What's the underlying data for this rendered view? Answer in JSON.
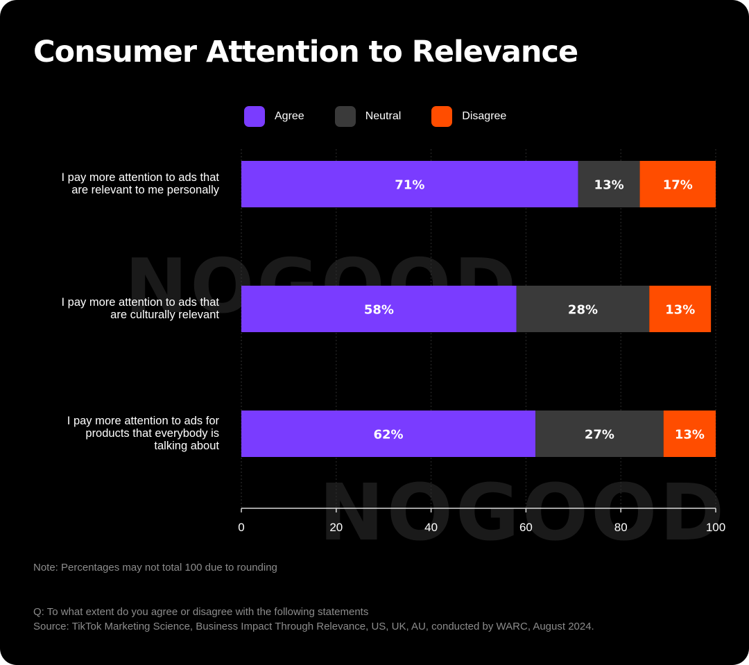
{
  "title": "Consumer Attention to Relevance",
  "watermark": "NOGOOD",
  "colors": {
    "background": "#000000",
    "agree": "#7a3cff",
    "neutral": "#3a3a3a",
    "disagree": "#ff4d00",
    "text": "#ffffff",
    "muted": "#8c8c8c"
  },
  "legend": [
    {
      "label": "Agree",
      "color": "#7a3cff"
    },
    {
      "label": "Neutral",
      "color": "#3a3a3a"
    },
    {
      "label": "Disagree",
      "color": "#ff4d00"
    }
  ],
  "chart_data": {
    "type": "bar",
    "orientation": "horizontal",
    "stacked": true,
    "title": "Consumer Attention to Relevance",
    "categories": [
      [
        "I pay more attention to ads that",
        "are relevant to me personally"
      ],
      [
        "I pay more attention to ads that",
        "are culturally relevant"
      ],
      [
        "I pay more attention to ads for",
        "products that everybody is",
        "talking about"
      ]
    ],
    "series": [
      {
        "name": "Agree",
        "color": "#7a3cff",
        "values": [
          71,
          58,
          62
        ],
        "labels": [
          "71%",
          "58%",
          "62%"
        ]
      },
      {
        "name": "Neutral",
        "color": "#3a3a3a",
        "values": [
          13,
          28,
          27
        ],
        "labels": [
          "13%",
          "28%",
          "27%"
        ]
      },
      {
        "name": "Disagree",
        "color": "#ff4d00",
        "values": [
          17,
          13,
          13
        ],
        "labels": [
          "17%",
          "13%",
          "13%"
        ]
      }
    ],
    "xlim": [
      0,
      100
    ],
    "xticks": [
      0,
      20,
      40,
      60,
      80,
      100
    ],
    "grid": true,
    "legend_position": "top"
  },
  "note": "Note: Percentages may not total 100 due to rounding",
  "question": "Q: To what extent do you agree or disagree with the following statements",
  "source": "Source: TikTok Marketing Science, Business Impact Through Relevance, US, UK, AU, conducted by WARC, August 2024."
}
